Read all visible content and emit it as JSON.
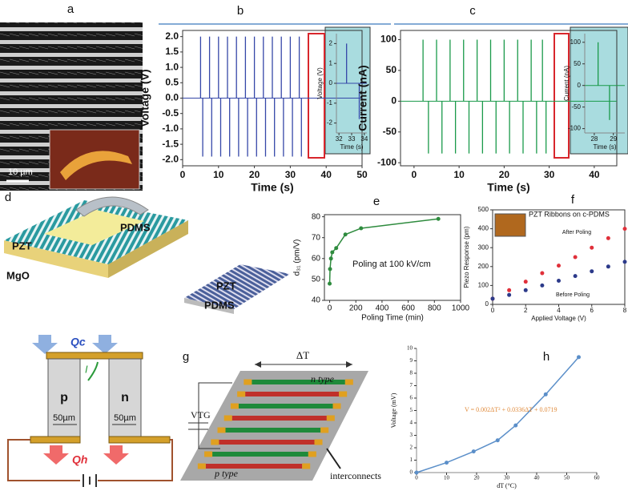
{
  "panel_labels": [
    "a",
    "b",
    "c",
    "d",
    "e",
    "f",
    "g",
    "h"
  ],
  "diagrams": {
    "a": {
      "scale_bar": "10 µm"
    },
    "d": {
      "labels": [
        "PDMS",
        "PZT",
        "MgO",
        "PZT",
        "PDMS"
      ]
    },
    "thermo": {
      "labels": [
        "Qc",
        "I",
        "p",
        "n",
        "50µm",
        "50µm",
        "Qh"
      ]
    },
    "g": {
      "labels": [
        "ΔT",
        "n type",
        "VTG",
        "p type",
        "interconnects"
      ]
    }
  },
  "chart_data": [
    {
      "type": "impulse",
      "xlabel": "Time (s)",
      "ylabel": "Voltage (V)",
      "color": "#3547a8",
      "x": [
        5,
        5.6,
        7.5,
        8.1,
        10,
        10.6,
        12.5,
        13.1,
        15,
        15.6,
        17.5,
        18.1,
        20,
        20.6,
        22.5,
        23.1,
        25,
        25.6,
        27.5,
        28.1,
        30,
        30.6,
        32.5,
        33.1
      ],
      "values": [
        2,
        -1.9,
        2,
        -1.9,
        2,
        -1.9,
        2,
        -1.9,
        2,
        -1.9,
        2,
        -1.9,
        2,
        -1.9,
        2,
        -1.9,
        2,
        -1.9,
        2,
        -1.9,
        2,
        -1.9,
        2,
        -1.9
      ],
      "xlim": [
        0,
        50
      ],
      "ylim": [
        -2.2,
        2.2
      ],
      "xticks": [
        0,
        10,
        20,
        30,
        40,
        50
      ],
      "yticks": [
        {
          "value": -2,
          "label": "-2.0"
        },
        -1.5,
        {
          "value": -1,
          "label": "-1.0"
        },
        -0.5,
        {
          "value": 0,
          "label": "0.0"
        },
        0.5,
        {
          "value": 1,
          "label": "1.0"
        },
        1.5,
        {
          "value": 2,
          "label": "2.0"
        }
      ]
    },
    {
      "type": "impulse",
      "xlabel": "Time (s)",
      "ylabel": "Voltage (V)",
      "color": "#3547a8",
      "x": [
        32.6,
        33.6
      ],
      "values": [
        2,
        -1.8
      ],
      "xlim": [
        31.8,
        34.2
      ],
      "ylim": [
        -2.5,
        2.5
      ],
      "xticks": [
        32,
        33,
        34
      ],
      "yticks": [
        -2,
        -1,
        0,
        1,
        2
      ]
    },
    {
      "type": "impulse",
      "xlabel": "Time (s)",
      "ylabel": "Current (nA)",
      "color": "#1a9a4a",
      "x": [
        2,
        3.2,
        5,
        6.2,
        8,
        9.2,
        11,
        12.2,
        14,
        15.2,
        17,
        18.2,
        20,
        21.2,
        23,
        24.2,
        26,
        27.2,
        28.5,
        29.3
      ],
      "values": [
        100,
        -85,
        100,
        -85,
        100,
        -85,
        100,
        -85,
        100,
        -85,
        100,
        -85,
        100,
        -85,
        100,
        -85,
        100,
        -85,
        100,
        -85
      ],
      "xlim": [
        -3,
        45
      ],
      "ylim": [
        -105,
        115
      ],
      "xticks": [
        0,
        10,
        20,
        30,
        40
      ],
      "yticks": [
        -100,
        -50,
        0,
        50,
        100
      ]
    },
    {
      "type": "impulse",
      "xlabel": "Time (s)",
      "ylabel": "Current (nA)",
      "color": "#1a9a4a",
      "x": [
        28.2,
        28.8
      ],
      "values": [
        100,
        -80
      ],
      "xlim": [
        27.5,
        29.6
      ],
      "ylim": [
        -110,
        120
      ],
      "xticks": [
        28,
        29
      ],
      "yticks": [
        -100,
        -50,
        0,
        50,
        100
      ]
    },
    {
      "type": "line",
      "xlabel": "Poling Time (min)",
      "ylabel": "d₃₁ (pm/V)",
      "color": "#2e8b3e",
      "x": [
        0,
        3,
        10,
        20,
        50,
        120,
        240,
        830
      ],
      "values": [
        48,
        55,
        60,
        63,
        65,
        71.5,
        74.5,
        79
      ],
      "xlim": [
        -40,
        1000
      ],
      "ylim": [
        40,
        81
      ],
      "xticks": [
        0,
        200,
        400,
        600,
        800,
        1000
      ],
      "yticks": [
        40,
        50,
        60,
        70,
        80
      ],
      "annotations": [
        "Poling at 100 kV/cm"
      ]
    },
    {
      "type": "scatter",
      "xlabel": "Applied Voltage (V)",
      "ylabel": "Piezo Response (pm)",
      "x": [
        0,
        1,
        2,
        3,
        4,
        5,
        6,
        7,
        8
      ],
      "series": [
        {
          "name": "After Poling",
          "color": "#e0303a",
          "values": [
            30,
            75,
            120,
            165,
            205,
            250,
            300,
            350,
            400
          ]
        },
        {
          "name": "Before Poling",
          "color": "#2c3a8a",
          "values": [
            30,
            50,
            75,
            100,
            125,
            150,
            175,
            200,
            225
          ]
        }
      ],
      "xlim": [
        0,
        8
      ],
      "ylim": [
        0,
        500
      ],
      "xticks": [
        0,
        2,
        4,
        6,
        8
      ],
      "yticks": [
        0,
        100,
        200,
        300,
        400,
        500
      ],
      "annotations": [
        "PZT Ribbons on c-PDMS"
      ]
    },
    {
      "type": "line",
      "xlabel": "dT (°C)",
      "ylabel": "Voltage (mV)",
      "color": "#5b8fc9",
      "x": [
        0,
        10,
        19,
        27,
        33,
        43,
        54
      ],
      "values": [
        0,
        0.8,
        1.7,
        2.6,
        3.8,
        6.3,
        9.3
      ],
      "xlim": [
        0,
        60
      ],
      "ylim": [
        0,
        10
      ],
      "xticks": [
        0,
        10,
        20,
        30,
        40,
        50,
        60
      ],
      "yticks": [
        0,
        1,
        2,
        3,
        4,
        5,
        6,
        7,
        8,
        9,
        10
      ],
      "annotations": [
        "V = 0.002ΔT² + 0.0336ΔT + 0.0719"
      ]
    }
  ]
}
